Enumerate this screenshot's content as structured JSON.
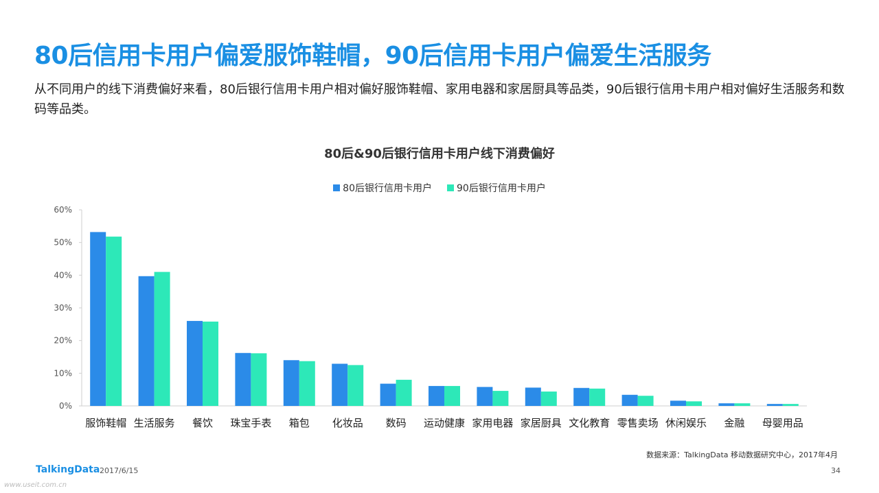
{
  "header": {
    "title": "80后信用卡用户偏爱服饰鞋帽，90后信用卡用户偏爱生活服务",
    "subtitle": "从不同用户的线下消费偏好来看，80后银行信用卡用户相对偏好服饰鞋帽、家用电器和家居厨具等品类，90后银行信用卡用户相对偏好生活服务和数码等品类。"
  },
  "chart_data": {
    "type": "bar",
    "title": "80后&90后银行信用卡用户线下消费偏好",
    "categories": [
      "服饰鞋帽",
      "生活服务",
      "餐饮",
      "珠宝手表",
      "箱包",
      "化妆品",
      "数码",
      "运动健康",
      "家用电器",
      "家居厨具",
      "文化教育",
      "零售卖场",
      "休闲娱乐",
      "金融",
      "母婴用品"
    ],
    "series": [
      {
        "name": "80后银行信用卡用户",
        "color": "#2b8be8",
        "values": [
          53.2,
          39.7,
          26.0,
          16.2,
          14.0,
          12.9,
          6.8,
          6.1,
          5.8,
          5.6,
          5.5,
          3.4,
          1.6,
          0.8,
          0.6
        ]
      },
      {
        "name": "90后银行信用卡用户",
        "color": "#2de8b8",
        "values": [
          51.8,
          41.0,
          25.8,
          16.1,
          13.7,
          12.5,
          8.0,
          6.1,
          4.6,
          4.4,
          5.3,
          3.1,
          1.4,
          0.8,
          0.6
        ]
      }
    ],
    "ylim": [
      0,
      60
    ],
    "yticks": [
      "0%",
      "10%",
      "20%",
      "30%",
      "40%",
      "50%",
      "60%"
    ],
    "legend_position": "top-center",
    "grid": false
  },
  "footer": {
    "source": "数据来源：TalkingData 移动数据研究中心，2017年4月",
    "logo": "TalkingData",
    "date": "2017/6/15",
    "page": "34",
    "watermark": "www.useit.com.cn"
  }
}
